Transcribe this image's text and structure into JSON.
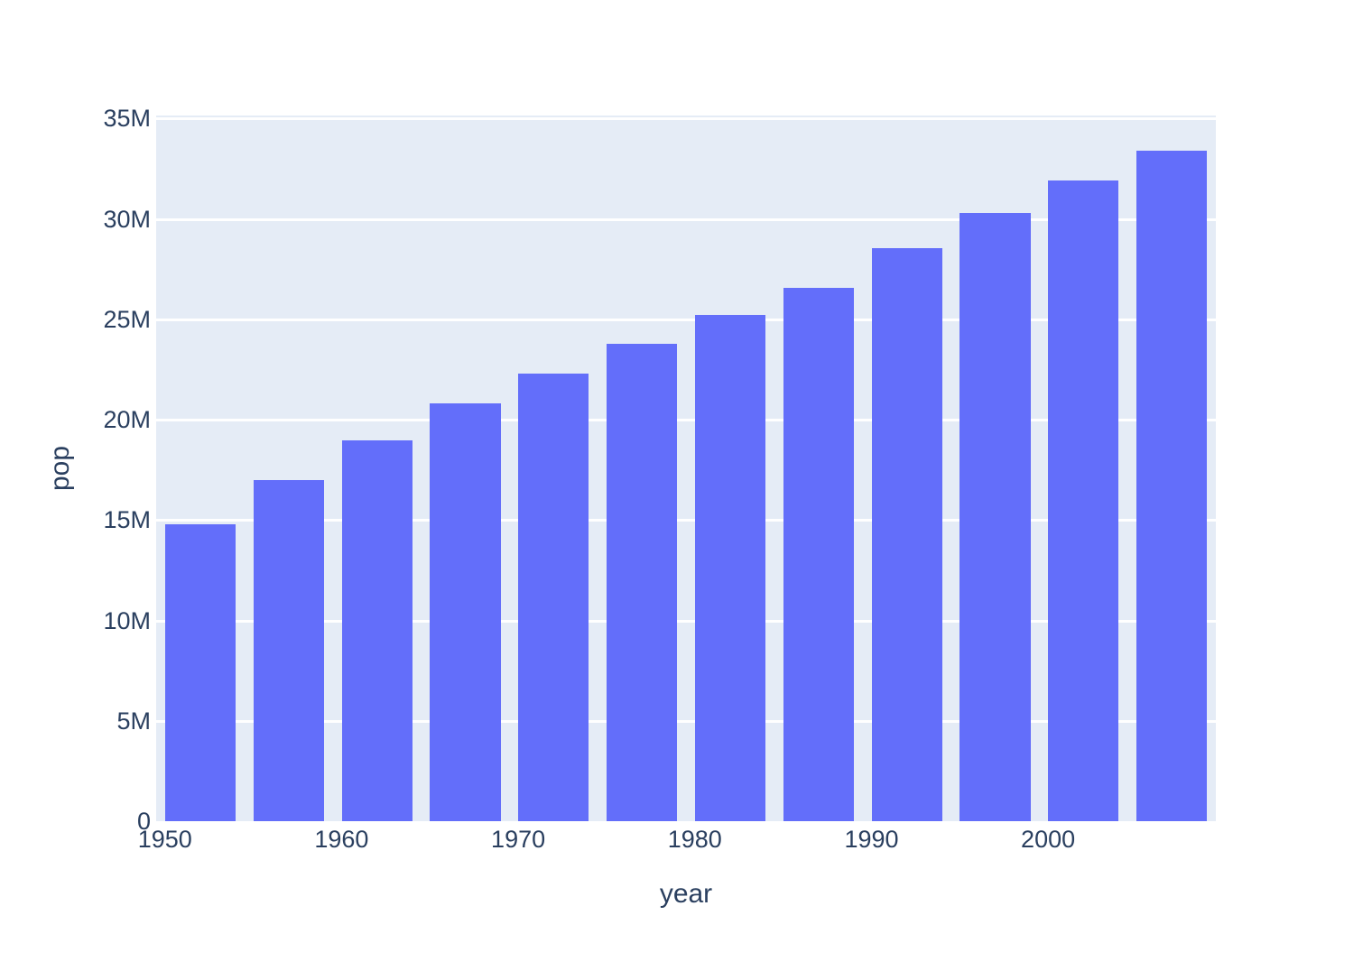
{
  "figure": {
    "kind": "plotly-style bar chart",
    "page_background": "#ffffff",
    "plot_background": "#e5ecf6",
    "grid_color": "#ffffff",
    "text_color": "#2a3f5f",
    "bar_color": "#636efa"
  },
  "chart_data": {
    "type": "bar",
    "title": "",
    "xlabel": "year",
    "ylabel": "pop",
    "series_name": "pop",
    "x": [
      1952,
      1957,
      1962,
      1967,
      1972,
      1977,
      1982,
      1987,
      1992,
      1997,
      2002,
      2007
    ],
    "values": [
      14785584,
      17010154,
      18985849,
      20819767,
      22284500,
      23796400,
      25201900,
      26549700,
      28523502,
      30305843,
      31902268,
      33390141
    ],
    "xlim": [
      1949.5,
      2009.5
    ],
    "ylim": [
      0,
      35150000
    ],
    "bar_width_years": 4,
    "x_ticks": [
      {
        "value": 1950,
        "label": "1950"
      },
      {
        "value": 1960,
        "label": "1960"
      },
      {
        "value": 1970,
        "label": "1970"
      },
      {
        "value": 1980,
        "label": "1980"
      },
      {
        "value": 1990,
        "label": "1990"
      },
      {
        "value": 2000,
        "label": "2000"
      }
    ],
    "y_ticks": [
      {
        "value": 0,
        "label": "0"
      },
      {
        "value": 5000000,
        "label": "5M"
      },
      {
        "value": 10000000,
        "label": "10M"
      },
      {
        "value": 15000000,
        "label": "15M"
      },
      {
        "value": 20000000,
        "label": "20M"
      },
      {
        "value": 25000000,
        "label": "25M"
      },
      {
        "value": 30000000,
        "label": "30M"
      },
      {
        "value": 35000000,
        "label": "35M"
      }
    ],
    "grid": "horizontal",
    "legend_position": "none"
  }
}
